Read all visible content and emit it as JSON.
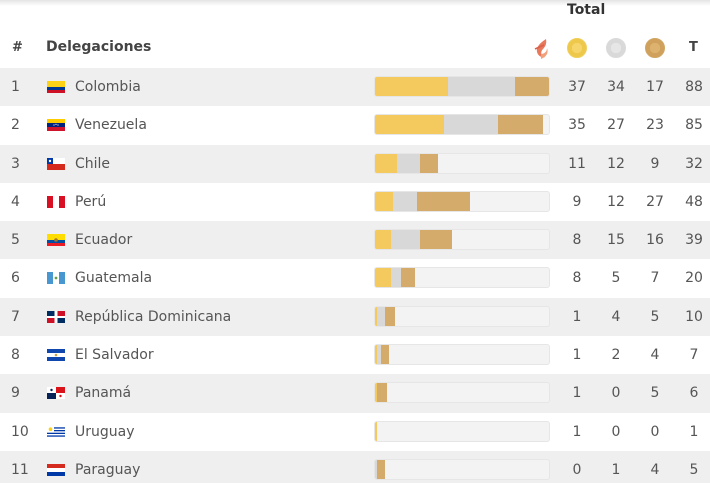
{
  "header": {
    "total_label": "Total",
    "rank_label": "#",
    "delegations_label": "Delegaciones",
    "total_short": "T",
    "icons": {
      "logo": "flame-logo-icon",
      "gold": "gold-medal-icon",
      "silver": "silver-medal-icon",
      "bronze": "bronze-medal-icon"
    }
  },
  "colors": {
    "gold": "#f4c95d",
    "silver": "#d8d8d8",
    "bronze": "#d4ab6a"
  },
  "max_total": 88,
  "rows": [
    {
      "rank": "1",
      "name": "Colombia",
      "flag": "colombia",
      "gold": 37,
      "silver": 34,
      "bronze": 17,
      "total": 88
    },
    {
      "rank": "2",
      "name": "Venezuela",
      "flag": "venezuela",
      "gold": 35,
      "silver": 27,
      "bronze": 23,
      "total": 85
    },
    {
      "rank": "3",
      "name": "Chile",
      "flag": "chile",
      "gold": 11,
      "silver": 12,
      "bronze": 9,
      "total": 32
    },
    {
      "rank": "4",
      "name": "Perú",
      "flag": "peru",
      "gold": 9,
      "silver": 12,
      "bronze": 27,
      "total": 48
    },
    {
      "rank": "5",
      "name": "Ecuador",
      "flag": "ecuador",
      "gold": 8,
      "silver": 15,
      "bronze": 16,
      "total": 39
    },
    {
      "rank": "6",
      "name": "Guatemala",
      "flag": "guatemala",
      "gold": 8,
      "silver": 5,
      "bronze": 7,
      "total": 20
    },
    {
      "rank": "7",
      "name": "República Dominicana",
      "flag": "dominicana",
      "gold": 1,
      "silver": 4,
      "bronze": 5,
      "total": 10
    },
    {
      "rank": "8",
      "name": "El Salvador",
      "flag": "salvador",
      "gold": 1,
      "silver": 2,
      "bronze": 4,
      "total": 7
    },
    {
      "rank": "9",
      "name": "Panamá",
      "flag": "panama",
      "gold": 1,
      "silver": 0,
      "bronze": 5,
      "total": 6
    },
    {
      "rank": "10",
      "name": "Uruguay",
      "flag": "uruguay",
      "gold": 1,
      "silver": 0,
      "bronze": 0,
      "total": 1
    },
    {
      "rank": "11",
      "name": "Paraguay",
      "flag": "paraguay",
      "gold": 0,
      "silver": 1,
      "bronze": 4,
      "total": 5
    }
  ]
}
